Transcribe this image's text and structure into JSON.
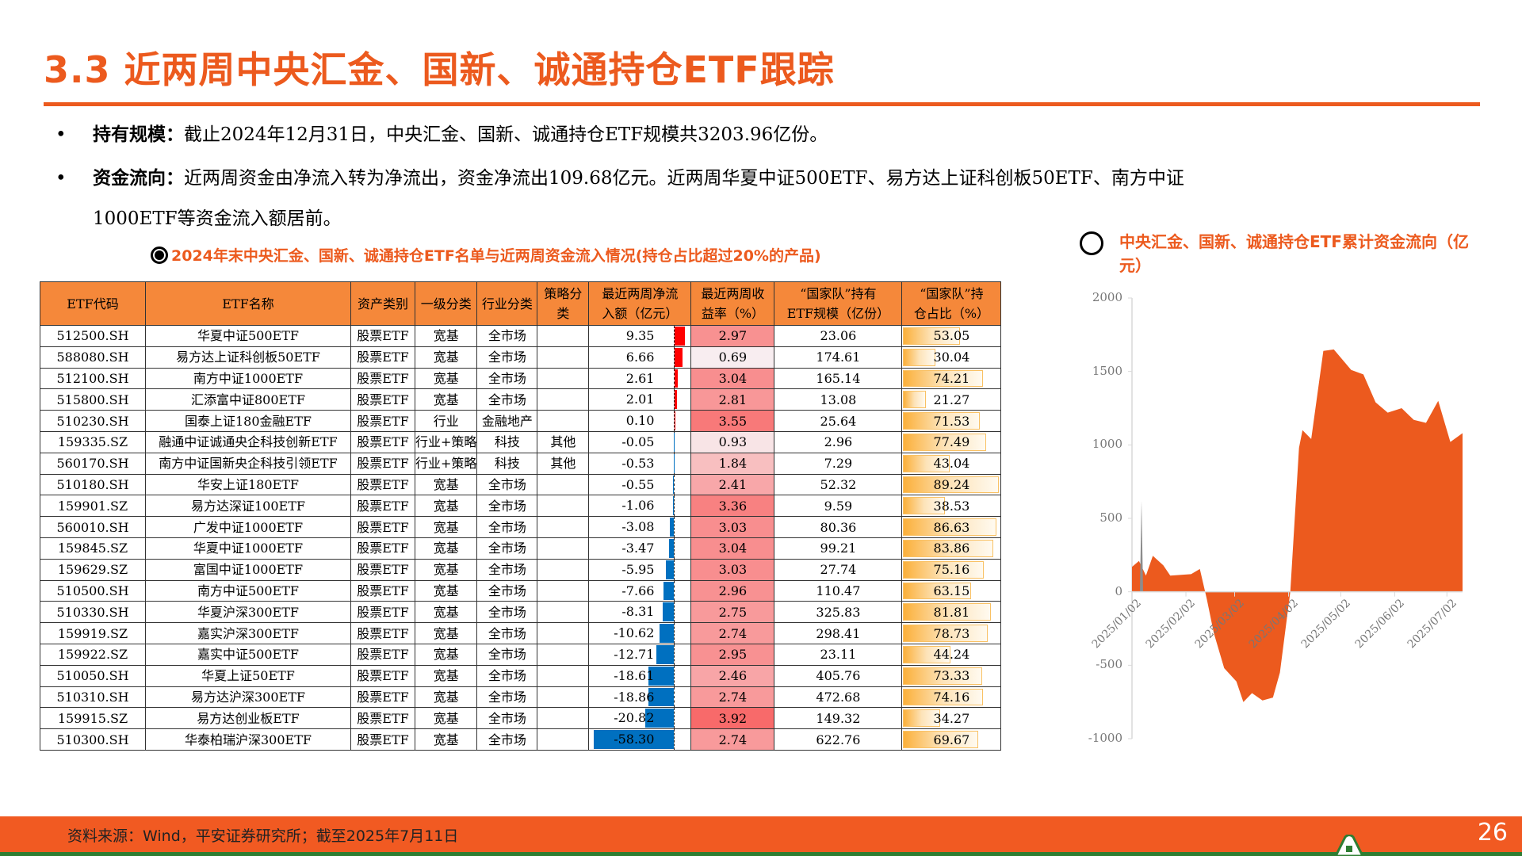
{
  "header": {
    "title": "3.3 近两周中央汇金、国新、诚通持仓ETF跟踪"
  },
  "bullets": [
    {
      "label": "持有规模：",
      "text": "截止2024年12月31日，中央汇金、国新、诚通持仓ETF规模共3203.96亿份。"
    },
    {
      "label": "资金流向：",
      "text": "近两周资金由净流入转为净流出，资金净流出109.68亿元。近两周华夏中证500ETF、易方达上证科创板50ETF、南方中证",
      "continuation": "1000ETF等资金流入额居前。"
    }
  ],
  "table": {
    "title": "2024年末中央汇金、国新、诚通持仓ETF名单与近两周资金流入情况(持仓占比超过20%的产品)",
    "headers": [
      "ETF代码",
      "ETF名称",
      "资产类别",
      "一级分类",
      "行业分类",
      "策略分类",
      "最近两周净流入额（亿元）",
      "最近两周收益率（%）",
      "“国家队”持有ETF规模（亿份）",
      "“国家队”持仓占比（%）"
    ],
    "header_lines": [
      [
        "ETF代码"
      ],
      [
        "ETF名称"
      ],
      [
        "资产类别"
      ],
      [
        "一级分类"
      ],
      [
        "行业分类"
      ],
      [
        "策略分",
        "类"
      ],
      [
        "最近两周净流",
        "入额（亿元）"
      ],
      [
        "最近两周收",
        "益率（%）"
      ],
      [
        "“国家队”持有",
        "ETF规模（亿份）"
      ],
      [
        "“国家队”持",
        "仓占比（%）"
      ]
    ],
    "rows": [
      {
        "code": "512500.SH",
        "name": "华夏中证500ETF",
        "asset": "股票ETF",
        "l1": "宽基",
        "industry": "全市场",
        "strategy": "",
        "flow": "9.35",
        "ret": "2.97",
        "scale": "23.06",
        "pct": "53.05"
      },
      {
        "code": "588080.SH",
        "name": "易方达上证科创板50ETF",
        "asset": "股票ETF",
        "l1": "宽基",
        "industry": "全市场",
        "strategy": "",
        "flow": "6.66",
        "ret": "0.69",
        "scale": "174.61",
        "pct": "30.04"
      },
      {
        "code": "512100.SH",
        "name": "南方中证1000ETF",
        "asset": "股票ETF",
        "l1": "宽基",
        "industry": "全市场",
        "strategy": "",
        "flow": "2.61",
        "ret": "3.04",
        "scale": "165.14",
        "pct": "74.21"
      },
      {
        "code": "515800.SH",
        "name": "汇添富中证800ETF",
        "asset": "股票ETF",
        "l1": "宽基",
        "industry": "全市场",
        "strategy": "",
        "flow": "2.01",
        "ret": "2.81",
        "scale": "13.08",
        "pct": "21.27"
      },
      {
        "code": "510230.SH",
        "name": "国泰上证180金融ETF",
        "asset": "股票ETF",
        "l1": "行业",
        "industry": "金融地产",
        "strategy": "",
        "flow": "0.10",
        "ret": "3.55",
        "scale": "25.64",
        "pct": "71.53"
      },
      {
        "code": "159335.SZ",
        "name": "融通中证诚通央企科技创新ETF",
        "asset": "股票ETF",
        "l1": "行业+策略",
        "industry": "科技",
        "strategy": "其他",
        "flow": "-0.05",
        "ret": "0.93",
        "scale": "2.96",
        "pct": "77.49"
      },
      {
        "code": "560170.SH",
        "name": "南方中证国新央企科技引领ETF",
        "asset": "股票ETF",
        "l1": "行业+策略",
        "industry": "科技",
        "strategy": "其他",
        "flow": "-0.53",
        "ret": "1.84",
        "scale": "7.29",
        "pct": "43.04"
      },
      {
        "code": "510180.SH",
        "name": "华安上证180ETF",
        "asset": "股票ETF",
        "l1": "宽基",
        "industry": "全市场",
        "strategy": "",
        "flow": "-0.55",
        "ret": "2.41",
        "scale": "52.32",
        "pct": "89.24"
      },
      {
        "code": "159901.SZ",
        "name": "易方达深证100ETF",
        "asset": "股票ETF",
        "l1": "宽基",
        "industry": "全市场",
        "strategy": "",
        "flow": "-1.06",
        "ret": "3.36",
        "scale": "9.59",
        "pct": "38.53"
      },
      {
        "code": "560010.SH",
        "name": "广发中证1000ETF",
        "asset": "股票ETF",
        "l1": "宽基",
        "industry": "全市场",
        "strategy": "",
        "flow": "-3.08",
        "ret": "3.03",
        "scale": "80.36",
        "pct": "86.63"
      },
      {
        "code": "159845.SZ",
        "name": "华夏中证1000ETF",
        "asset": "股票ETF",
        "l1": "宽基",
        "industry": "全市场",
        "strategy": "",
        "flow": "-3.47",
        "ret": "3.04",
        "scale": "99.21",
        "pct": "83.86"
      },
      {
        "code": "159629.SZ",
        "name": "富国中证1000ETF",
        "asset": "股票ETF",
        "l1": "宽基",
        "industry": "全市场",
        "strategy": "",
        "flow": "-5.95",
        "ret": "3.03",
        "scale": "27.74",
        "pct": "75.16"
      },
      {
        "code": "510500.SH",
        "name": "南方中证500ETF",
        "asset": "股票ETF",
        "l1": "宽基",
        "industry": "全市场",
        "strategy": "",
        "flow": "-7.66",
        "ret": "2.96",
        "scale": "110.47",
        "pct": "63.15"
      },
      {
        "code": "510330.SH",
        "name": "华夏沪深300ETF",
        "asset": "股票ETF",
        "l1": "宽基",
        "industry": "全市场",
        "strategy": "",
        "flow": "-8.31",
        "ret": "2.75",
        "scale": "325.83",
        "pct": "81.81"
      },
      {
        "code": "159919.SZ",
        "name": "嘉实沪深300ETF",
        "asset": "股票ETF",
        "l1": "宽基",
        "industry": "全市场",
        "strategy": "",
        "flow": "-10.62",
        "ret": "2.74",
        "scale": "298.41",
        "pct": "78.73"
      },
      {
        "code": "159922.SZ",
        "name": "嘉实中证500ETF",
        "asset": "股票ETF",
        "l1": "宽基",
        "industry": "全市场",
        "strategy": "",
        "flow": "-12.71",
        "ret": "2.95",
        "scale": "23.11",
        "pct": "44.24"
      },
      {
        "code": "510050.SH",
        "name": "华夏上证50ETF",
        "asset": "股票ETF",
        "l1": "宽基",
        "industry": "全市场",
        "strategy": "",
        "flow": "-18.61",
        "ret": "2.46",
        "scale": "405.76",
        "pct": "73.33"
      },
      {
        "code": "510310.SH",
        "name": "易方达沪深300ETF",
        "asset": "股票ETF",
        "l1": "宽基",
        "industry": "全市场",
        "strategy": "",
        "flow": "-18.86",
        "ret": "2.74",
        "scale": "472.68",
        "pct": "74.16"
      },
      {
        "code": "159915.SZ",
        "name": "易方达创业板ETF",
        "asset": "股票ETF",
        "l1": "宽基",
        "industry": "全市场",
        "strategy": "",
        "flow": "-20.82",
        "ret": "3.92",
        "scale": "149.32",
        "pct": "34.27"
      },
      {
        "code": "510300.SH",
        "name": "华泰柏瑞沪深300ETF",
        "asset": "股票ETF",
        "l1": "宽基",
        "industry": "全市场",
        "strategy": "",
        "flow": "-58.30",
        "ret": "2.74",
        "scale": "622.76",
        "pct": "69.67"
      }
    ]
  },
  "colors": {
    "accent": "#ec5a1e",
    "header_fill": "#f5883a",
    "inflow_bar": "#ff0000",
    "outflow_bar": "#0070c0",
    "pct_bar": "#fbb03b",
    "footer": "#f15a22",
    "footer_line": "#2e7d32"
  },
  "chart_data": [
    {
      "type": "table",
      "title": "2024年末中央汇金、国新、诚通持仓ETF名单与近两周资金流入情况(持仓占比超过20%的产品)",
      "columns": [
        "ETF代码",
        "ETF名称",
        "最近两周净流入额（亿元）",
        "最近两周收益率（%）",
        "“国家队”持有ETF规模（亿份）",
        "“国家队”持仓占比（%）"
      ]
    },
    {
      "type": "area",
      "title": "中央汇金、国新、诚通持仓ETF累计资金流向（亿元）",
      "xlabel": "",
      "ylabel": "",
      "ylim": [
        -1000,
        2000
      ],
      "yticks": [
        2000,
        1500,
        1000,
        500,
        0,
        -500,
        -1000
      ],
      "xticks": [
        "2025/01/02",
        "2025/02/02",
        "2025/03/02",
        "2025/04/02",
        "2025/05/02",
        "2025/06/02",
        "2025/07/02"
      ],
      "grid": false,
      "series": [
        {
          "name": "累计资金流向",
          "color": "#ec5a1e",
          "x": [
            "2025/01/02",
            "2025/01/06",
            "2025/01/10",
            "2025/01/14",
            "2025/01/20",
            "2025/01/24",
            "2025/02/05",
            "2025/02/10",
            "2025/02/14",
            "2025/02/18",
            "2025/02/24",
            "2025/03/03",
            "2025/03/07",
            "2025/03/12",
            "2025/03/18",
            "2025/03/24",
            "2025/03/28",
            "2025/04/03",
            "2025/04/08",
            "2025/04/10",
            "2025/04/15",
            "2025/04/22",
            "2025/04/28",
            "2025/05/08",
            "2025/05/15",
            "2025/05/22",
            "2025/05/29",
            "2025/06/06",
            "2025/06/13",
            "2025/06/20",
            "2025/06/27",
            "2025/07/04",
            "2025/07/11"
          ],
          "values": [
            170,
            210,
            110,
            245,
            180,
            110,
            120,
            155,
            -50,
            -280,
            -520,
            -610,
            -750,
            -690,
            -740,
            -720,
            -550,
            0,
            980,
            1100,
            1040,
            1640,
            1650,
            1510,
            1480,
            1290,
            1220,
            1250,
            1170,
            1150,
            1300,
            1020,
            1080
          ]
        }
      ]
    }
  ],
  "chart_labels": {
    "title": "中央汇金、国新、诚通持仓ETF累计资金流向（亿元）",
    "yticks": [
      "2000",
      "1500",
      "1000",
      "500",
      "0",
      "-500",
      "-1000"
    ],
    "xticks": [
      "2025/01/02",
      "2025/02/02",
      "2025/03/02",
      "2025/04/02",
      "2025/05/02",
      "2025/06/02",
      "2025/07/02"
    ]
  },
  "footer": {
    "source": "资料来源：Wind，平安证券研究所；截至2025年7月11日",
    "page": "26"
  }
}
